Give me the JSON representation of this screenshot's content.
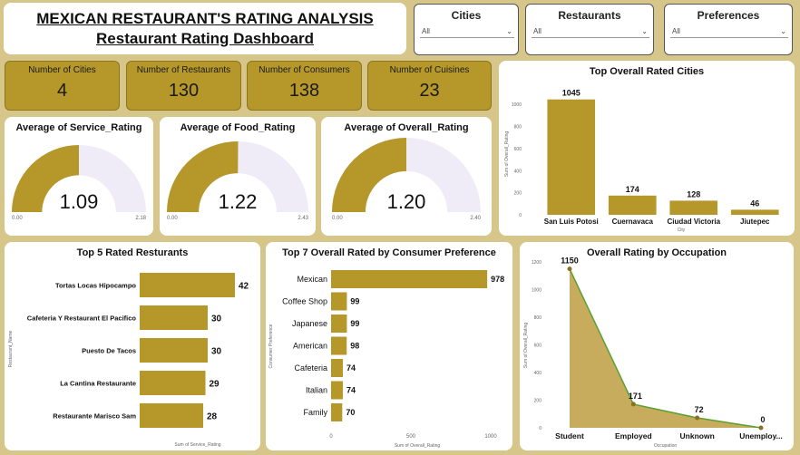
{
  "header": {
    "title": "MEXICAN RESTAURANT'S RATING ANALYSIS",
    "subtitle": "Restaurant Rating Dashboard"
  },
  "slicers": [
    {
      "label": "Cities",
      "value": "All"
    },
    {
      "label": "Restaurants",
      "value": "All"
    },
    {
      "label": "Preferences",
      "value": "All"
    }
  ],
  "kpis": [
    {
      "label": "Number of Cities",
      "value": "4"
    },
    {
      "label": "Number of Restaurants",
      "value": "130"
    },
    {
      "label": "Number of Consumers",
      "value": "138"
    },
    {
      "label": "Number of Cuisines",
      "value": "23"
    }
  ],
  "colors": {
    "accent": "#b5972a",
    "gauge_bg": "#efecf8",
    "line": "#5aa032"
  },
  "chart_data": [
    {
      "type": "gauge",
      "title": "Average of Service_Rating",
      "value": 1.09,
      "value_label": "1.09",
      "min": 0,
      "max": 2.18,
      "min_label": "0.00",
      "max_label": "2.18"
    },
    {
      "type": "gauge",
      "title": "Average of Food_Rating",
      "value": 1.22,
      "value_label": "1.22",
      "min": 0,
      "max": 2.43,
      "min_label": "0.00",
      "max_label": "2.43"
    },
    {
      "type": "gauge",
      "title": "Average of Overall_Rating",
      "value": 1.2,
      "value_label": "1.20",
      "min": 0,
      "max": 2.4,
      "min_label": "0.00",
      "max_label": "2.40"
    },
    {
      "type": "bar",
      "title": "Top Overall Rated Cities",
      "categories": [
        "San Luis Potosi",
        "Cuernavaca",
        "Ciudad Victoria",
        "Jiutepec"
      ],
      "values": [
        1045,
        174,
        128,
        46
      ],
      "xlabel": "City",
      "ylabel": "Sum of Overall_Rating",
      "yticks": [
        "0",
        "200",
        "400",
        "600",
        "800",
        "1000"
      ],
      "ylim": [
        0,
        1100
      ]
    },
    {
      "type": "bar",
      "orientation": "horizontal",
      "title": "Top 5 Rated Resturants",
      "categories": [
        "Tortas Locas Hipocampo",
        "Cafeteria Y Restaurant El Pacifico",
        "Puesto De Tacos",
        "La Cantina Restaurante",
        "Restaurante Marisco Sam"
      ],
      "values": [
        42,
        30,
        30,
        29,
        28
      ],
      "xlabel": "Sum of Service_Rating",
      "ylabel": "Restaurant_Name",
      "xlim": [
        0,
        48
      ]
    },
    {
      "type": "bar",
      "orientation": "horizontal",
      "title": "Top 7 Overall Rated by Consumer Preference",
      "categories": [
        "Mexican",
        "Coffee Shop",
        "Japanese",
        "American",
        "Cafeteria",
        "Italian",
        "Family"
      ],
      "values": [
        978,
        99,
        99,
        98,
        74,
        74,
        70
      ],
      "xlabel": "Sum of Overall_Rating",
      "ylabel": "Consumer Preference",
      "xticks": [
        "0",
        "500",
        "1000"
      ],
      "xlim": [
        0,
        1000
      ]
    },
    {
      "type": "area",
      "title": "Overall Rating by Occupation",
      "categories": [
        "Student",
        "Employed",
        "Unknown",
        "Unemploy..."
      ],
      "values": [
        1150,
        171,
        72,
        0
      ],
      "xlabel": "Occupation",
      "ylabel": "Sum of Overall_Rating",
      "yticks": [
        "0",
        "200",
        "400",
        "600",
        "800",
        "1000",
        "1200"
      ],
      "ylim": [
        0,
        1200
      ]
    }
  ]
}
